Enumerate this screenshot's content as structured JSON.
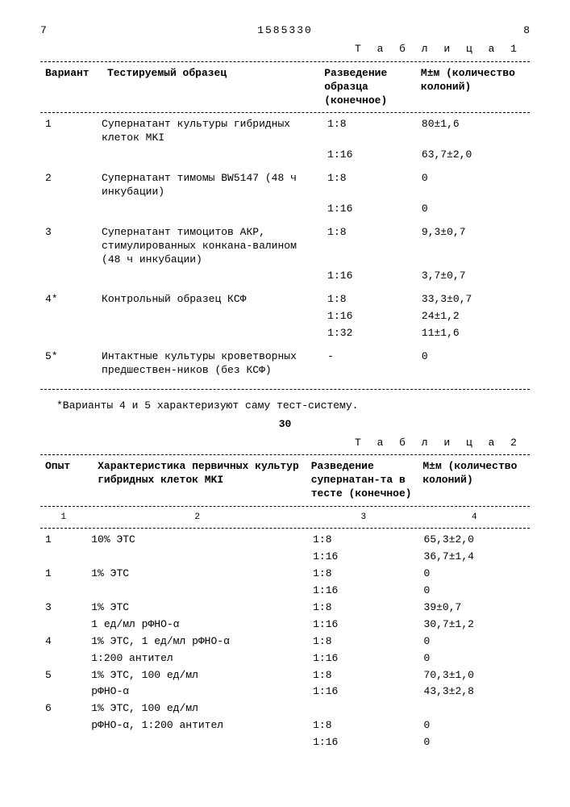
{
  "header": {
    "page_left": "7",
    "doc_number": "1585330",
    "page_right": "8"
  },
  "table1": {
    "caption": "Т а б л и ц а  1",
    "columns": {
      "variant": "Вариант",
      "sample": "Тестируемый образец",
      "dilution": "Разведение образца (конечное)",
      "result": "М±м (количество колоний)"
    },
    "rows": [
      {
        "variant": "1",
        "sample": "Супернатант культуры гибридных клеток MKI",
        "lines": [
          {
            "dil": "1:8",
            "res": "80±1,6"
          },
          {
            "dil": "1:16",
            "res": "63,7±2,0"
          }
        ]
      },
      {
        "variant": "2",
        "sample": "Супернатант тимомы BW5147 (48 ч инкубации)",
        "lines": [
          {
            "dil": "1:8",
            "res": "0"
          },
          {
            "dil": "1:16",
            "res": "0"
          }
        ]
      },
      {
        "variant": "3",
        "sample": "Супернатант тимоцитов АКР, стимулированных конкана-валином (48 ч инкубации)",
        "lines": [
          {
            "dil": "1:8",
            "res": "9,3±0,7"
          },
          {
            "dil": "1:16",
            "res": "3,7±0,7"
          }
        ]
      },
      {
        "variant": "4*",
        "sample": "Контрольный образец КСФ",
        "lines": [
          {
            "dil": "1:8",
            "res": "33,3±0,7"
          },
          {
            "dil": "1:16",
            "res": "24±1,2"
          },
          {
            "dil": "1:32",
            "res": "11±1,6"
          }
        ]
      },
      {
        "variant": "5*",
        "sample": "Интактные культуры кроветворных предшествен-ников (без КСФ)",
        "lines": [
          {
            "dil": "-",
            "res": "0"
          }
        ]
      }
    ],
    "footnote": "*Варианты 4 и 5 характеризуют саму тест-систему."
  },
  "mid_marker": "30",
  "table2": {
    "caption": "Т а б л и ц а  2",
    "columns": {
      "opyt": "Опыт",
      "char": "Характеристика первичных культур гибридных клеток MKI",
      "dilution": "Разведение супернатан-та в тесте (конечное)",
      "result": "М±м (количество колоний)"
    },
    "subheads": {
      "c1": "1",
      "c2": "2",
      "c3": "3",
      "c4": "4"
    },
    "rows": [
      {
        "opyt": "1",
        "char": "10% ЭТС",
        "lines": [
          {
            "dil": "1:8",
            "res": "65,3±2,0"
          },
          {
            "dil": "1:16",
            "res": "36,7±1,4"
          }
        ]
      },
      {
        "opyt": "1",
        "char": "1% ЭТС",
        "lines": [
          {
            "dil": "1:8",
            "res": "0"
          },
          {
            "dil": "1:16",
            "res": "0"
          }
        ]
      },
      {
        "opyt": "3",
        "char": "1% ЭТС",
        "lines": [
          {
            "dil": "1:8",
            "res": "39±0,7"
          }
        ]
      },
      {
        "opyt": "",
        "char": "1 ед/мл рФНО-α",
        "lines": [
          {
            "dil": "1:16",
            "res": "30,7±1,2"
          }
        ]
      },
      {
        "opyt": "4",
        "char": "1% ЭТС, 1 ед/мл рФНО-α",
        "lines": [
          {
            "dil": "1:8",
            "res": "0"
          }
        ]
      },
      {
        "opyt": "",
        "char": "1:200 антител",
        "lines": [
          {
            "dil": "1:16",
            "res": "0"
          }
        ]
      },
      {
        "opyt": "5",
        "char": "1% ЭТС, 100 ед/мл",
        "lines": [
          {
            "dil": "1:8",
            "res": "70,3±1,0"
          }
        ]
      },
      {
        "opyt": "",
        "char": "рФНО-α",
        "lines": [
          {
            "dil": "1:16",
            "res": "43,3±2,8"
          }
        ]
      },
      {
        "opyt": "6",
        "char": "1% ЭТС, 100 ед/мл",
        "lines": []
      },
      {
        "opyt": "",
        "char": "рФНО-α, 1:200 антител",
        "lines": [
          {
            "dil": "1:8",
            "res": "0"
          },
          {
            "dil": "1:16",
            "res": "0"
          }
        ]
      }
    ]
  }
}
